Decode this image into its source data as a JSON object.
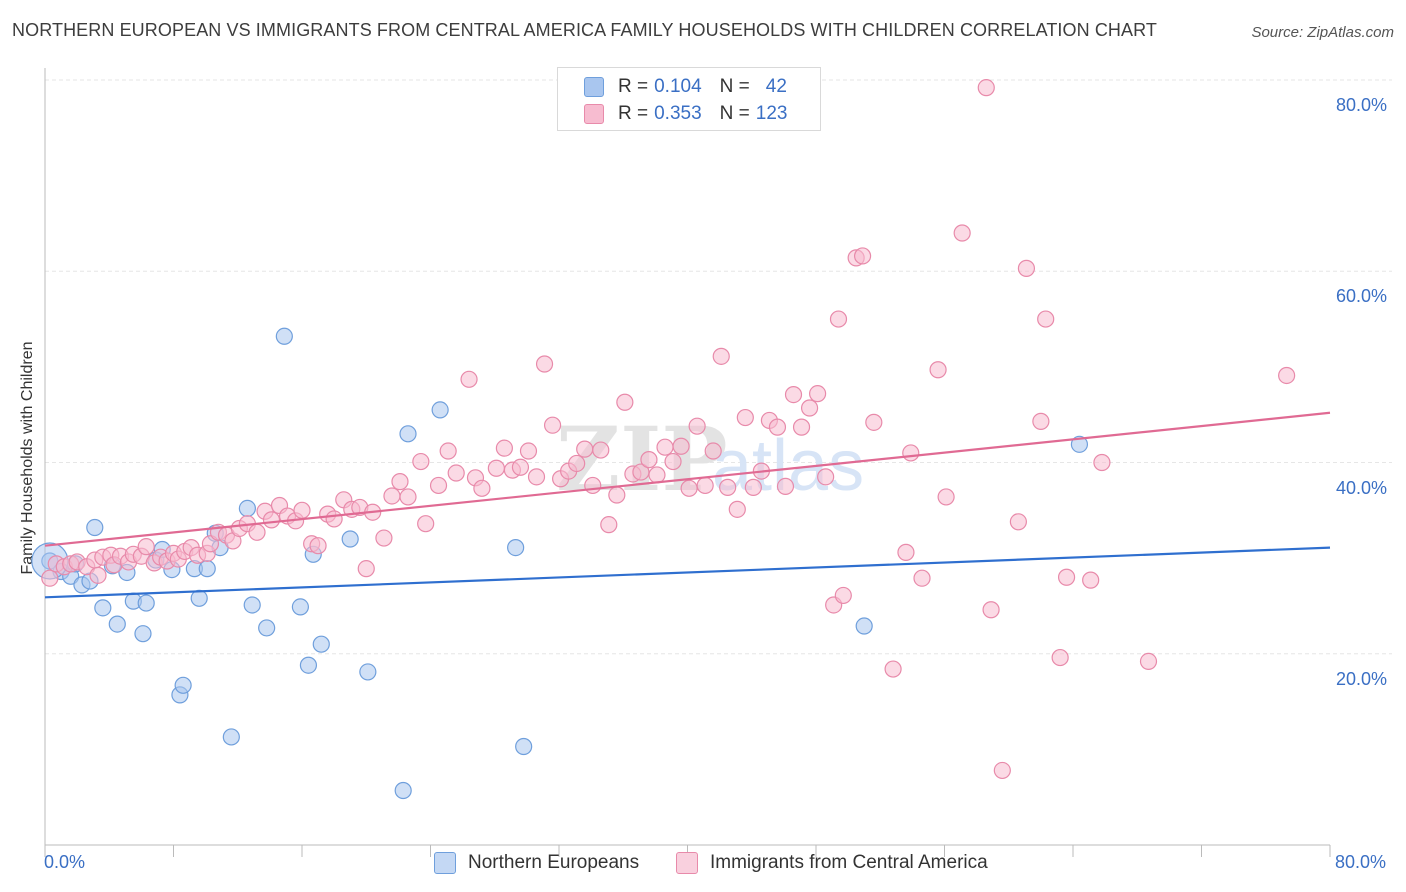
{
  "title": "NORTHERN EUROPEAN VS IMMIGRANTS FROM CENTRAL AMERICA FAMILY HOUSEHOLDS WITH CHILDREN CORRELATION CHART",
  "source": "Source: ZipAtlas.com",
  "watermark": "ZIPatlas",
  "legend": {
    "rows": [
      {
        "r_label": "R =",
        "r_value": "0.104",
        "n_label": "N =",
        "n_value": "42",
        "color": "#a9c6ef",
        "stroke": "#6f9fdc"
      },
      {
        "r_label": "R =",
        "r_value": "0.353",
        "n_label": "N =",
        "n_value": "123",
        "color": "#f7bcd0",
        "stroke": "#e88aaa"
      }
    ]
  },
  "colors": {
    "blue_fill": "#a9c6ef",
    "blue_stroke": "#6f9fdc",
    "blue_line": "#2f6fcf",
    "pink_fill": "#f7bcd0",
    "pink_stroke": "#e88aaa",
    "pink_line": "#e06a93",
    "grid": "#e6e6e6",
    "tick_text": "#3a6fc4"
  },
  "chart_data": {
    "type": "scatter",
    "title": "NORTHERN EUROPEAN VS IMMIGRANTS FROM CENTRAL AMERICA FAMILY HOUSEHOLDS WITH CHILDREN CORRELATION CHART",
    "xlabel": "",
    "ylabel": "Family Households with Children",
    "xlim": [
      0,
      80
    ],
    "ylim": [
      0,
      80
    ],
    "x_tick_labels": [
      "0.0%",
      "80.0%"
    ],
    "y_tick_labels": [
      "20.0%",
      "40.0%",
      "60.0%",
      "80.0%"
    ],
    "y_ticks": [
      20,
      40,
      60,
      80
    ],
    "grid": true,
    "legend_position": "bottom",
    "series": [
      {
        "name": "Northern Europeans",
        "trend": [
          [
            0,
            25.9
          ],
          [
            80,
            31.1
          ]
        ],
        "points": [
          [
            0.3,
            29.7
          ],
          [
            1.0,
            28.6
          ],
          [
            1.6,
            28.1
          ],
          [
            1.9,
            29.4
          ],
          [
            2.3,
            27.2
          ],
          [
            2.8,
            27.6
          ],
          [
            3.1,
            33.2
          ],
          [
            3.6,
            24.8
          ],
          [
            4.2,
            29.2
          ],
          [
            4.5,
            23.1
          ],
          [
            5.1,
            28.5
          ],
          [
            5.5,
            25.5
          ],
          [
            6.1,
            22.1
          ],
          [
            6.3,
            25.3
          ],
          [
            6.9,
            29.8
          ],
          [
            7.3,
            30.9
          ],
          [
            7.9,
            28.8
          ],
          [
            8.4,
            15.7
          ],
          [
            8.6,
            16.7
          ],
          [
            9.3,
            28.9
          ],
          [
            9.6,
            25.8
          ],
          [
            10.1,
            28.9
          ],
          [
            10.6,
            32.6
          ],
          [
            10.9,
            31.1
          ],
          [
            11.6,
            11.3
          ],
          [
            12.6,
            35.2
          ],
          [
            12.9,
            25.1
          ],
          [
            13.8,
            22.7
          ],
          [
            14.9,
            53.2
          ],
          [
            15.9,
            24.9
          ],
          [
            16.4,
            18.8
          ],
          [
            16.7,
            30.4
          ],
          [
            17.2,
            21.0
          ],
          [
            19.0,
            32.0
          ],
          [
            20.1,
            18.1
          ],
          [
            22.3,
            5.7
          ],
          [
            22.6,
            43.0
          ],
          [
            24.6,
            45.5
          ],
          [
            29.3,
            31.1
          ],
          [
            29.8,
            10.3
          ],
          [
            51.0,
            22.9
          ],
          [
            64.4,
            41.9
          ]
        ]
      },
      {
        "name": "Immigrants from Central America",
        "trend": [
          [
            0,
            31.3
          ],
          [
            80,
            45.2
          ]
        ],
        "points": [
          [
            0.3,
            27.9
          ],
          [
            0.7,
            29.4
          ],
          [
            1.2,
            29.1
          ],
          [
            1.6,
            29.4
          ],
          [
            2.0,
            29.6
          ],
          [
            2.6,
            29.1
          ],
          [
            3.1,
            29.8
          ],
          [
            3.3,
            28.2
          ],
          [
            3.6,
            30.1
          ],
          [
            4.1,
            30.3
          ],
          [
            4.3,
            29.3
          ],
          [
            4.7,
            30.2
          ],
          [
            5.2,
            29.6
          ],
          [
            5.5,
            30.4
          ],
          [
            6.0,
            30.2
          ],
          [
            6.3,
            31.2
          ],
          [
            6.8,
            29.5
          ],
          [
            7.2,
            30.1
          ],
          [
            7.6,
            29.7
          ],
          [
            8.0,
            30.5
          ],
          [
            8.3,
            29.9
          ],
          [
            8.7,
            30.7
          ],
          [
            9.1,
            31.1
          ],
          [
            9.5,
            30.3
          ],
          [
            10.1,
            30.5
          ],
          [
            10.3,
            31.5
          ],
          [
            10.8,
            32.7
          ],
          [
            11.3,
            32.4
          ],
          [
            11.7,
            31.8
          ],
          [
            12.1,
            33.1
          ],
          [
            12.6,
            33.6
          ],
          [
            13.2,
            32.7
          ],
          [
            13.7,
            34.9
          ],
          [
            14.1,
            34.0
          ],
          [
            14.6,
            35.5
          ],
          [
            15.1,
            34.4
          ],
          [
            15.6,
            33.9
          ],
          [
            16.0,
            35.0
          ],
          [
            16.6,
            31.5
          ],
          [
            17.0,
            31.3
          ],
          [
            17.6,
            34.6
          ],
          [
            18.0,
            34.1
          ],
          [
            18.6,
            36.1
          ],
          [
            19.1,
            35.1
          ],
          [
            19.6,
            35.3
          ],
          [
            20.0,
            28.9
          ],
          [
            20.4,
            34.8
          ],
          [
            21.1,
            32.1
          ],
          [
            21.6,
            36.5
          ],
          [
            22.1,
            38.0
          ],
          [
            22.6,
            36.4
          ],
          [
            23.4,
            40.1
          ],
          [
            23.7,
            33.6
          ],
          [
            24.5,
            37.6
          ],
          [
            25.1,
            41.2
          ],
          [
            25.6,
            38.9
          ],
          [
            26.4,
            48.7
          ],
          [
            26.8,
            38.4
          ],
          [
            27.2,
            37.3
          ],
          [
            28.1,
            39.4
          ],
          [
            28.6,
            41.5
          ],
          [
            29.1,
            39.2
          ],
          [
            29.6,
            39.5
          ],
          [
            30.1,
            41.2
          ],
          [
            30.6,
            38.5
          ],
          [
            31.1,
            50.3
          ],
          [
            31.6,
            43.9
          ],
          [
            32.1,
            38.3
          ],
          [
            32.6,
            39.1
          ],
          [
            33.1,
            39.9
          ],
          [
            33.6,
            41.4
          ],
          [
            34.1,
            37.6
          ],
          [
            34.6,
            41.3
          ],
          [
            35.1,
            33.5
          ],
          [
            35.6,
            36.6
          ],
          [
            36.1,
            46.3
          ],
          [
            36.6,
            38.8
          ],
          [
            37.1,
            39.0
          ],
          [
            37.6,
            40.3
          ],
          [
            38.1,
            38.7
          ],
          [
            38.6,
            41.6
          ],
          [
            39.1,
            40.1
          ],
          [
            39.6,
            41.7
          ],
          [
            40.1,
            37.3
          ],
          [
            40.6,
            43.8
          ],
          [
            41.1,
            37.6
          ],
          [
            41.6,
            41.2
          ],
          [
            42.1,
            51.1
          ],
          [
            42.5,
            37.4
          ],
          [
            43.1,
            35.1
          ],
          [
            43.6,
            44.7
          ],
          [
            44.1,
            37.4
          ],
          [
            44.6,
            39.1
          ],
          [
            45.1,
            44.4
          ],
          [
            45.6,
            43.7
          ],
          [
            46.1,
            37.5
          ],
          [
            46.6,
            47.1
          ],
          [
            47.1,
            43.7
          ],
          [
            47.6,
            45.7
          ],
          [
            48.1,
            47.2
          ],
          [
            48.6,
            38.5
          ],
          [
            49.1,
            25.1
          ],
          [
            49.4,
            55.0
          ],
          [
            49.7,
            26.1
          ],
          [
            50.5,
            61.4
          ],
          [
            50.9,
            61.6
          ],
          [
            51.6,
            44.2
          ],
          [
            52.8,
            18.4
          ],
          [
            53.6,
            30.6
          ],
          [
            53.9,
            41.0
          ],
          [
            54.6,
            27.9
          ],
          [
            55.6,
            49.7
          ],
          [
            56.1,
            36.4
          ],
          [
            57.1,
            64.0
          ],
          [
            58.6,
            79.2
          ],
          [
            58.9,
            24.6
          ],
          [
            59.6,
            7.8
          ],
          [
            60.6,
            33.8
          ],
          [
            61.1,
            60.3
          ],
          [
            62.0,
            44.3
          ],
          [
            62.3,
            55.0
          ],
          [
            63.2,
            19.6
          ],
          [
            63.6,
            28.0
          ],
          [
            65.1,
            27.7
          ],
          [
            65.8,
            40.0
          ],
          [
            68.7,
            19.2
          ],
          [
            77.3,
            49.1
          ]
        ]
      }
    ]
  },
  "bottom_legend": [
    {
      "label": "Northern Europeans",
      "color": "#a9c6ef",
      "stroke": "#6f9fdc"
    },
    {
      "label": "Immigrants from Central America",
      "color": "#f7bcd0",
      "stroke": "#e88aaa"
    }
  ]
}
